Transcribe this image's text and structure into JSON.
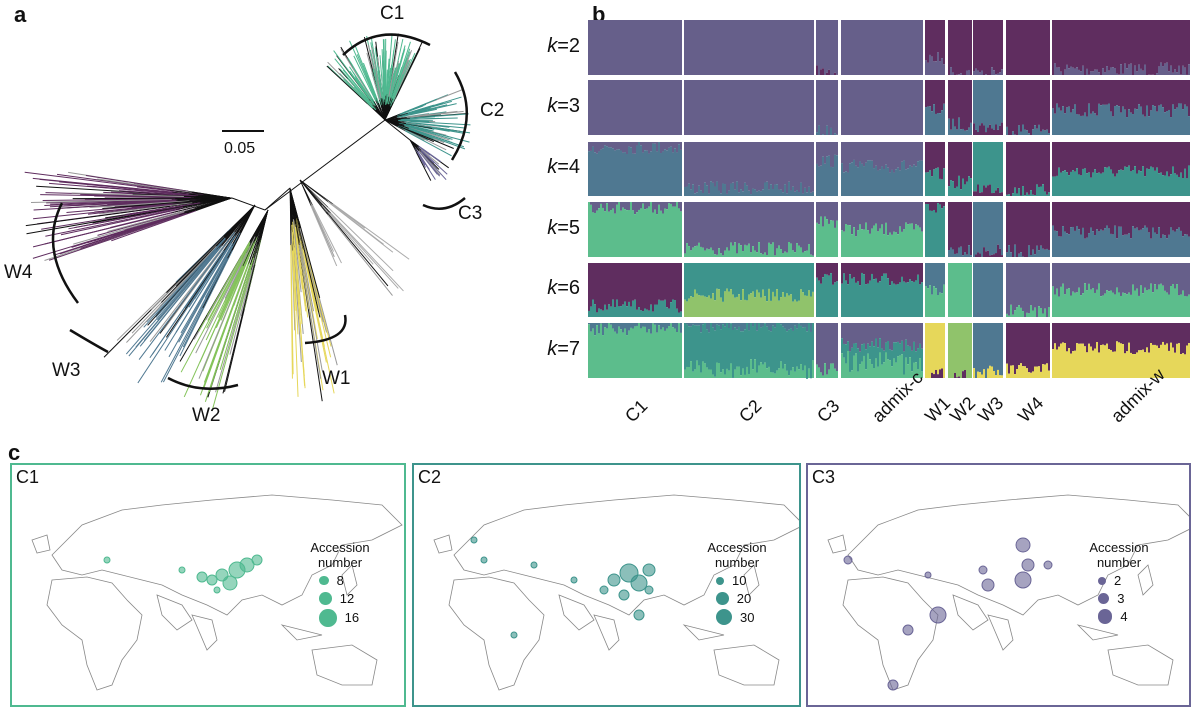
{
  "panels": {
    "a": "a",
    "b": "b",
    "c": "c"
  },
  "tree": {
    "scale_bar_label": "0.05",
    "clades": [
      {
        "name": "C1",
        "color": "#4fb990"
      },
      {
        "name": "C2",
        "color": "#3d948c"
      },
      {
        "name": "C3",
        "color": "#6a6596"
      },
      {
        "name": "W1",
        "color": "#e6d75a"
      },
      {
        "name": "W2",
        "color": "#84c35a"
      },
      {
        "name": "W3",
        "color": "#4f7891"
      },
      {
        "name": "W4",
        "color": "#5f2d5f"
      }
    ]
  },
  "admixture": {
    "palette": [
      "#5f2d5f",
      "#665f8a",
      "#4f7891",
      "#3d948c",
      "#5cbd8c",
      "#90c36b",
      "#e6d75a"
    ],
    "groups": [
      "C1",
      "C2",
      "C3",
      "admix-c",
      "W1",
      "W2",
      "W3",
      "W4",
      "admix-w"
    ],
    "rows": [
      {
        "k_prefix": "k",
        "k_value": "=2",
        "mix": [
          [
            [
              1,
              1
            ]
          ],
          [
            [
              1,
              1
            ]
          ],
          [
            [
              1,
              0.95
            ],
            [
              0,
              0.05
            ]
          ],
          [
            [
              1,
              1
            ]
          ],
          [
            [
              0,
              0.7
            ],
            [
              1,
              0.3
            ]
          ],
          [
            [
              0,
              0.95
            ],
            [
              1,
              0.05
            ]
          ],
          [
            [
              0,
              0.97
            ],
            [
              1,
              0.03
            ]
          ],
          [
            [
              0,
              1
            ]
          ],
          [
            [
              0,
              0.9
            ],
            [
              1,
              0.1
            ]
          ]
        ]
      },
      {
        "k_prefix": "k",
        "k_value": "=3",
        "mix": [
          [
            [
              1,
              1
            ]
          ],
          [
            [
              1,
              1
            ]
          ],
          [
            [
              1,
              0.95
            ],
            [
              2,
              0.05
            ]
          ],
          [
            [
              1,
              1
            ]
          ],
          [
            [
              0,
              0.55
            ],
            [
              2,
              0.45
            ]
          ],
          [
            [
              0,
              0.8
            ],
            [
              2,
              0.2
            ]
          ],
          [
            [
              2,
              0.85
            ],
            [
              0,
              0.15
            ]
          ],
          [
            [
              0,
              0.9
            ],
            [
              2,
              0.1
            ]
          ],
          [
            [
              0,
              0.55
            ],
            [
              2,
              0.45
            ]
          ]
        ]
      },
      {
        "k_prefix": "k",
        "k_value": "=4",
        "mix": [
          [
            [
              1,
              0.1
            ],
            [
              2,
              0.9
            ]
          ],
          [
            [
              1,
              0.85
            ],
            [
              2,
              0.15
            ]
          ],
          [
            [
              1,
              0.35
            ],
            [
              2,
              0.65
            ]
          ],
          [
            [
              1,
              0.45
            ],
            [
              2,
              0.55
            ]
          ],
          [
            [
              0,
              0.6
            ],
            [
              3,
              0.4
            ]
          ],
          [
            [
              0,
              0.75
            ],
            [
              3,
              0.25
            ]
          ],
          [
            [
              3,
              0.85
            ],
            [
              0,
              0.15
            ]
          ],
          [
            [
              0,
              0.9
            ],
            [
              3,
              0.1
            ]
          ],
          [
            [
              0,
              0.55
            ],
            [
              3,
              0.45
            ]
          ]
        ]
      },
      {
        "k_prefix": "k",
        "k_value": "=5",
        "mix": [
          [
            [
              1,
              0.1
            ],
            [
              4,
              0.9
            ]
          ],
          [
            [
              1,
              0.85
            ],
            [
              4,
              0.15
            ]
          ],
          [
            [
              1,
              0.35
            ],
            [
              4,
              0.65
            ]
          ],
          [
            [
              1,
              0.5
            ],
            [
              4,
              0.5
            ]
          ],
          [
            [
              0,
              0.1
            ],
            [
              3,
              0.9
            ]
          ],
          [
            [
              0,
              0.85
            ],
            [
              2,
              0.15
            ]
          ],
          [
            [
              2,
              0.9
            ],
            [
              0,
              0.1
            ]
          ],
          [
            [
              0,
              0.9
            ],
            [
              2,
              0.1
            ]
          ],
          [
            [
              0,
              0.55
            ],
            [
              2,
              0.45
            ]
          ]
        ]
      },
      {
        "k_prefix": "k",
        "k_value": "=6",
        "mix": [
          [
            [
              0,
              0.8
            ],
            [
              3,
              0.2
            ]
          ],
          [
            [
              3,
              0.6
            ],
            [
              5,
              0.4
            ]
          ],
          [
            [
              0,
              0.3
            ],
            [
              3,
              0.7
            ]
          ],
          [
            [
              0,
              0.3
            ],
            [
              3,
              0.7
            ]
          ],
          [
            [
              2,
              0.5
            ],
            [
              4,
              0.5
            ]
          ],
          [
            [
              4,
              1
            ]
          ],
          [
            [
              2,
              1
            ]
          ],
          [
            [
              1,
              0.9
            ],
            [
              4,
              0.1
            ]
          ],
          [
            [
              1,
              0.5
            ],
            [
              4,
              0.5
            ]
          ]
        ]
      },
      {
        "k_prefix": "k",
        "k_value": "=7",
        "mix": [
          [
            [
              2,
              0.1
            ],
            [
              4,
              0.9
            ]
          ],
          [
            [
              2,
              0.05
            ],
            [
              3,
              0.75
            ],
            [
              4,
              0.2
            ]
          ],
          [
            [
              1,
              0.85
            ],
            [
              4,
              0.15
            ]
          ],
          [
            [
              1,
              0.4
            ],
            [
              3,
              0.3
            ],
            [
              4,
              0.3
            ]
          ],
          [
            [
              6,
              0.95
            ],
            [
              0,
              0.05
            ]
          ],
          [
            [
              5,
              0.95
            ],
            [
              0,
              0.05
            ]
          ],
          [
            [
              2,
              0.9
            ],
            [
              6,
              0.1
            ]
          ],
          [
            [
              0,
              0.85
            ],
            [
              6,
              0.15
            ]
          ],
          [
            [
              0,
              0.45
            ],
            [
              6,
              0.55
            ]
          ]
        ]
      }
    ]
  },
  "maps": [
    {
      "title": "C1",
      "color": "#4fb990",
      "legend_title": "Accession number",
      "legend": [
        "8",
        "12",
        "16"
      ]
    },
    {
      "title": "C2",
      "color": "#3d948c",
      "legend_title": "Accession number",
      "legend": [
        "10",
        "20",
        "30"
      ]
    },
    {
      "title": "C3",
      "color": "#6a6596",
      "legend_title": "Accession number",
      "legend": [
        "2",
        "3",
        "4"
      ]
    }
  ]
}
